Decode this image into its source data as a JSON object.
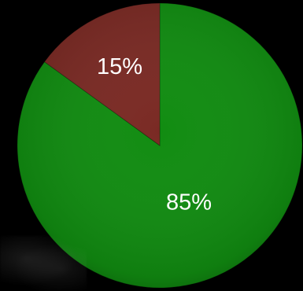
{
  "chart_data": {
    "type": "pie",
    "categories": [
      "",
      ""
    ],
    "values": [
      85,
      15
    ],
    "labels": [
      "85%",
      "15%"
    ],
    "colors": [
      "#118c11",
      "#7a2a24"
    ],
    "legend": "none",
    "title": ""
  }
}
